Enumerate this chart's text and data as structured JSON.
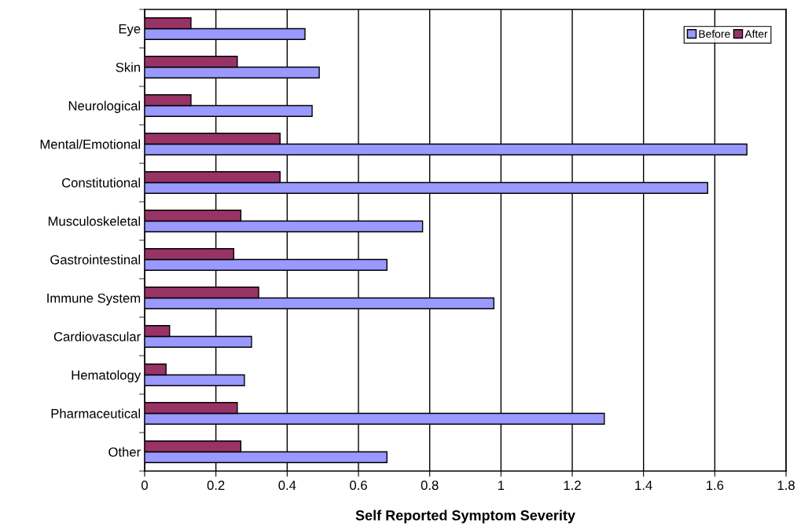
{
  "chart_data": {
    "type": "bar",
    "orientation": "horizontal",
    "xlabel": "Self Reported Symptom Severity",
    "categories": [
      "Eye",
      "Skin",
      "Neurological",
      "Mental/Emotional",
      "Constitutional",
      "Musculoskeletal",
      "Gastrointestinal",
      "Immune System",
      "Cardiovascular",
      "Hematology",
      "Pharmaceutical",
      "Other"
    ],
    "series": [
      {
        "name": "Before",
        "color": "#9999ff",
        "values": [
          0.45,
          0.49,
          0.47,
          1.69,
          1.58,
          0.78,
          0.68,
          0.98,
          0.3,
          0.28,
          1.29,
          0.68
        ]
      },
      {
        "name": "After",
        "color": "#993366",
        "values": [
          0.13,
          0.26,
          0.13,
          0.38,
          0.38,
          0.27,
          0.25,
          0.32,
          0.07,
          0.06,
          0.26,
          0.27
        ]
      }
    ],
    "xlim": [
      0,
      1.8
    ],
    "xticks": [
      0,
      0.2,
      0.4,
      0.6,
      0.8,
      1,
      1.2,
      1.4,
      1.6,
      1.8
    ],
    "grid": "x",
    "legend": "top right"
  }
}
